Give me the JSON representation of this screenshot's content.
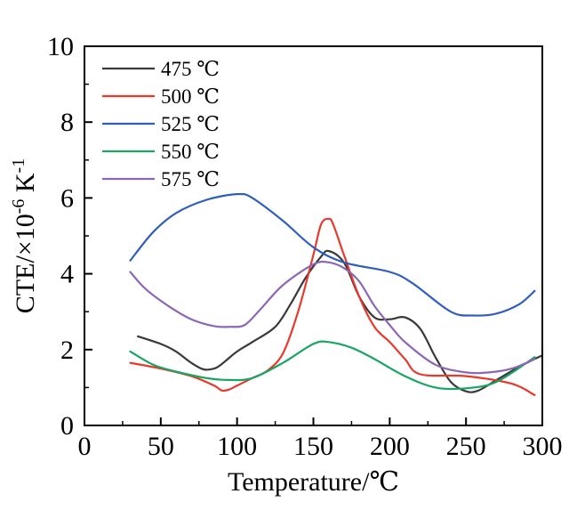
{
  "chart_data": {
    "type": "line",
    "xlabel": "Temperature/℃",
    "ylabel_prefix": "CTE/×10",
    "ylabel_exp1": "-6",
    "ylabel_mid": " K",
    "ylabel_exp2": "-1",
    "xlim": [
      0,
      300
    ],
    "ylim": [
      0,
      10
    ],
    "x_ticks": [
      "0",
      "50",
      "100",
      "150",
      "200",
      "250",
      "300"
    ],
    "y_ticks": [
      "0",
      "2",
      "4",
      "6",
      "8",
      "10"
    ],
    "x_tick_values": [
      0,
      50,
      100,
      150,
      200,
      250,
      300
    ],
    "y_tick_values": [
      0,
      2,
      4,
      6,
      8,
      10
    ],
    "legend_position": "top-left",
    "grid": false,
    "series": [
      {
        "name": "475 ℃",
        "color": "#3a3a3a",
        "x": [
          35,
          50,
          60,
          70,
          78,
          85,
          90,
          100,
          110,
          125,
          135,
          145,
          155,
          160,
          170,
          180,
          190,
          200,
          210,
          220,
          230,
          240,
          250,
          258,
          270,
          285,
          300
        ],
        "y": [
          2.35,
          2.15,
          1.95,
          1.65,
          1.48,
          1.5,
          1.62,
          1.95,
          2.2,
          2.6,
          3.2,
          3.9,
          4.45,
          4.6,
          4.3,
          3.4,
          2.85,
          2.8,
          2.85,
          2.55,
          1.8,
          1.15,
          0.9,
          0.92,
          1.2,
          1.55,
          1.85
        ]
      },
      {
        "name": "500 ℃",
        "color": "#e8392c",
        "x": [
          30,
          50,
          70,
          85,
          90,
          95,
          100,
          110,
          120,
          130,
          140,
          150,
          155,
          160,
          163,
          170,
          180,
          190,
          200,
          210,
          220,
          250,
          280,
          295
        ],
        "y": [
          1.65,
          1.5,
          1.3,
          1.05,
          0.92,
          0.95,
          1.05,
          1.25,
          1.45,
          1.9,
          3.0,
          4.5,
          5.3,
          5.45,
          5.3,
          4.5,
          3.4,
          2.6,
          2.2,
          1.75,
          1.35,
          1.3,
          1.1,
          0.8
        ]
      },
      {
        "name": "525 ℃",
        "color": "#2f5ebd",
        "x": [
          30,
          45,
          60,
          80,
          100,
          110,
          130,
          150,
          170,
          200,
          215,
          240,
          255,
          270,
          285,
          295
        ],
        "y": [
          4.35,
          5.1,
          5.6,
          5.95,
          6.1,
          6.0,
          5.4,
          4.7,
          4.3,
          4.05,
          3.75,
          3.0,
          2.9,
          2.95,
          3.2,
          3.55
        ]
      },
      {
        "name": "550 ℃",
        "color": "#1aa564",
        "x": [
          30,
          45,
          60,
          80,
          95,
          110,
          130,
          150,
          160,
          175,
          190,
          210,
          230,
          250,
          270,
          295
        ],
        "y": [
          1.95,
          1.6,
          1.42,
          1.25,
          1.2,
          1.25,
          1.65,
          2.15,
          2.2,
          2.05,
          1.75,
          1.3,
          1.0,
          0.98,
          1.15,
          1.8
        ]
      },
      {
        "name": "575 ℃",
        "color": "#8c67b5",
        "x": [
          30,
          40,
          55,
          70,
          85,
          95,
          105,
          115,
          130,
          150,
          160,
          170,
          180,
          190,
          200,
          210,
          230,
          250,
          265,
          280,
          295
        ],
        "y": [
          4.05,
          3.6,
          3.15,
          2.8,
          2.62,
          2.6,
          2.65,
          3.05,
          3.7,
          4.25,
          4.3,
          4.15,
          3.8,
          3.15,
          2.65,
          2.2,
          1.6,
          1.4,
          1.4,
          1.5,
          1.75
        ]
      }
    ]
  }
}
